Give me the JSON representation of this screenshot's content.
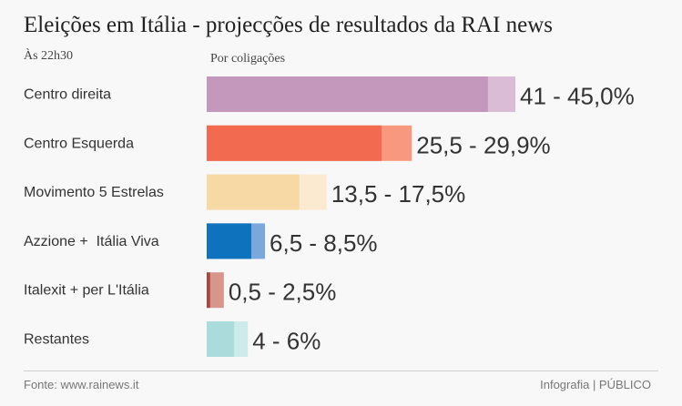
{
  "header": {
    "title": "Eleições em Itália - projecções de resultados da RAI news",
    "time": "Às 22h30",
    "group_label": "Por coligações"
  },
  "footer": {
    "source": "Fonte: www.rainews.it",
    "credit": "Infografia | PÚBLICO"
  },
  "chart_data": {
    "type": "bar",
    "orientation": "horizontal",
    "title": "Eleições em Itália - projecções de resultados da RAI news",
    "subtitle": "Às 22h30",
    "unit": "%",
    "categories": [
      "Centro direita",
      "Centro Esquerda",
      "Movimento 5 Estrelas",
      "Azzione +  Itália Viva",
      "Italexit + per L'Itália",
      "Restantes"
    ],
    "series": [
      {
        "name": "min",
        "values": [
          41,
          25.5,
          13.5,
          6.5,
          0.5,
          4
        ]
      },
      {
        "name": "max",
        "values": [
          45.0,
          29.9,
          17.5,
          8.5,
          2.5,
          6
        ]
      }
    ],
    "value_labels": [
      "41 - 45,0%",
      "25,5 - 29,9%",
      "13,5 - 17,5%",
      "6,5 - 8,5%",
      "0,5 - 2,5%",
      "4 - 6%"
    ],
    "colors": {
      "dark": [
        "#c497bc",
        "#f26a4f",
        "#f6d9a5",
        "#0f72bd",
        "#a8473d",
        "#aadcdc"
      ],
      "light": [
        "#dbbcd6",
        "#f8997f",
        "#fbe9d0",
        "#7aa7dc",
        "#d6968c",
        "#cdebea"
      ]
    },
    "xlim": [
      0,
      45
    ]
  }
}
